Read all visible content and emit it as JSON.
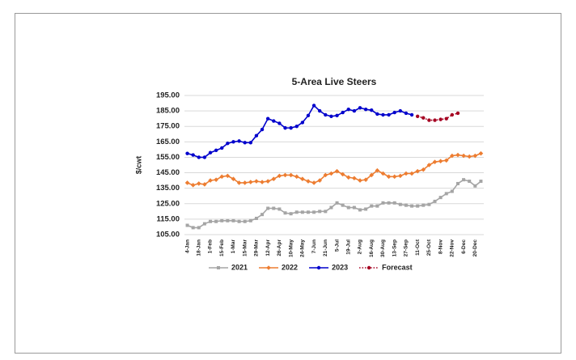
{
  "chart_data": {
    "type": "line",
    "title": "5-Area Live Steers",
    "y_label": "$/cwt",
    "categories": [
      "4-Jan",
      null,
      "18-Jan",
      null,
      "1-Feb",
      null,
      "15-Feb",
      null,
      "1-Mar",
      null,
      "15-Mar",
      null,
      "29-Mar",
      null,
      "12-Apr",
      null,
      "26-Apr",
      null,
      "10-May",
      null,
      "24-May",
      null,
      "7-Jun",
      null,
      "21-Jun",
      null,
      "5-Jul",
      null,
      "19-Jul",
      null,
      "2-Aug",
      null,
      "16-Aug",
      null,
      "30-Aug",
      null,
      "13-Sep",
      null,
      "27-Sep",
      null,
      "11-Oct",
      null,
      "25-Oct",
      null,
      "8-Nov",
      null,
      "22-Nov",
      null,
      "6-Dec",
      null,
      "20-Dec",
      null
    ],
    "series": [
      {
        "name": "2021",
        "color": "#a5a5a5",
        "marker": "square",
        "values": [
          111,
          109.5,
          109.5,
          112,
          113.5,
          113.5,
          114,
          114,
          114,
          113.5,
          113.5,
          114,
          115.5,
          118,
          122,
          122,
          121.5,
          119,
          118.5,
          119.5,
          119.5,
          119.5,
          119.5,
          120,
          120,
          122.5,
          125.5,
          124,
          122.5,
          122.5,
          121,
          121.5,
          123.5,
          123.5,
          125.5,
          125.5,
          125.5,
          124.5,
          124,
          123.5,
          123.5,
          124,
          124.5,
          126.5,
          129,
          131.5,
          133,
          138,
          140.5,
          139.5,
          136.5,
          139.5
        ]
      },
      {
        "name": "2022",
        "color": "#ed7d31",
        "marker": "diamond",
        "values": [
          138.5,
          137,
          138,
          137.5,
          140,
          140.5,
          142.5,
          143,
          141,
          138.5,
          138.5,
          139,
          139.5,
          139,
          139.5,
          141,
          143,
          143.5,
          143.5,
          142.5,
          141,
          139.5,
          138.5,
          140,
          143.5,
          144.5,
          146,
          144,
          142,
          141.5,
          140,
          140.5,
          143.5,
          146.5,
          144.5,
          142.5,
          142.5,
          143,
          144.5,
          144.5,
          146,
          147,
          150,
          152,
          152.5,
          153,
          156,
          156.5,
          156,
          155.5,
          156,
          157.5
        ]
      },
      {
        "name": "2023",
        "color": "#0000cc",
        "marker": "circle",
        "values": [
          157.5,
          156.5,
          155,
          155,
          158,
          159.5,
          161,
          164,
          165,
          165.5,
          164.5,
          164.5,
          169,
          173,
          180,
          178.5,
          177,
          174,
          174,
          175,
          177.5,
          182,
          188.5,
          185,
          182.5,
          181.5,
          182,
          184,
          186,
          185,
          187,
          186,
          185.5,
          183,
          182.5,
          182.5,
          184,
          185,
          183.5,
          182.5,
          null,
          null,
          null,
          null,
          null,
          null,
          null,
          null,
          null,
          null,
          null,
          null
        ]
      },
      {
        "name": "Forecast",
        "color": "#a50021",
        "marker": "circle",
        "dashed": true,
        "values": [
          null,
          null,
          null,
          null,
          null,
          null,
          null,
          null,
          null,
          null,
          null,
          null,
          null,
          null,
          null,
          null,
          null,
          null,
          null,
          null,
          null,
          null,
          null,
          null,
          null,
          null,
          null,
          null,
          null,
          null,
          null,
          null,
          null,
          null,
          null,
          null,
          null,
          null,
          null,
          null,
          181.5,
          180.5,
          179,
          179,
          179.5,
          180,
          182.5,
          183.5,
          null,
          null,
          null,
          null
        ]
      }
    ],
    "ylim": [
      105,
      195
    ],
    "yticks": [
      {
        "value": 105,
        "label": "105.00"
      },
      {
        "value": 115,
        "label": "115.00"
      },
      {
        "value": 125,
        "label": "125.00"
      },
      {
        "value": 135,
        "label": "135.00"
      },
      {
        "value": 145,
        "label": "145.00"
      },
      {
        "value": 155,
        "label": "155.00"
      },
      {
        "value": 165,
        "label": "165.00"
      },
      {
        "value": 175,
        "label": "175.00"
      },
      {
        "value": 185,
        "label": "185.00"
      },
      {
        "value": 195,
        "label": "195.00"
      }
    ],
    "grid": true,
    "legend": "bottom"
  }
}
